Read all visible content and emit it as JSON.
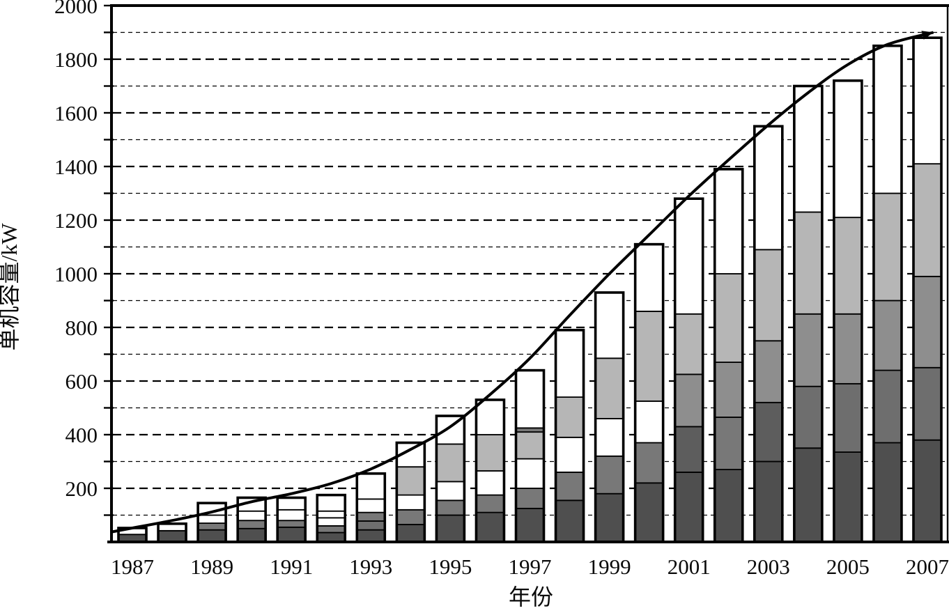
{
  "figure": {
    "ylabel": "单机容量/kW",
    "xlabel": "年份"
  },
  "chart_data": {
    "type": "bar",
    "subtype": "stacked-bars-with-smooth-trend-line-and-arrow",
    "title": "",
    "xlabel": "年份",
    "ylabel": "单机容量/kW",
    "ylim": [
      0,
      2000
    ],
    "ytick_label_step": 200,
    "ytick_minor_step": 100,
    "grid": "horizontal dashed every 100, heavier dash every 200, no gridline at 0 and 2000 border",
    "legend": "none",
    "ytick_labels": [
      "200",
      "400",
      "600",
      "800",
      "1000",
      "1200",
      "1400",
      "1600",
      "1800",
      "2000"
    ],
    "xtick_labels": [
      "1987",
      "1989",
      "1991",
      "1993",
      "1995",
      "1997",
      "1999",
      "2001",
      "2003",
      "2005",
      "2007"
    ],
    "categories": [
      1987,
      1988,
      1989,
      1990,
      1991,
      1992,
      1993,
      1994,
      1995,
      1996,
      1997,
      1998,
      1999,
      2000,
      2001,
      2002,
      2003,
      2004,
      2005,
      2006,
      2007
    ],
    "palette": {
      "d1": "#4f4f4f",
      "d2": "#5d5d5d",
      "d3": "#6e6e6e",
      "m": "#787878",
      "m2": "#8e8e8e",
      "l": "#b6b6b6",
      "w": "#ffffff",
      "outline": "#000000"
    },
    "bars": [
      {
        "year": 1987,
        "total": 52,
        "segments": [
          {
            "to": 28,
            "c": "d1"
          },
          {
            "to": 52,
            "c": "w"
          }
        ]
      },
      {
        "year": 1988,
        "total": 68,
        "segments": [
          {
            "to": 42,
            "c": "d1"
          },
          {
            "to": 68,
            "c": "w"
          }
        ]
      },
      {
        "year": 1989,
        "total": 145,
        "segments": [
          {
            "to": 45,
            "c": "d1"
          },
          {
            "to": 70,
            "c": "m"
          },
          {
            "to": 100,
            "c": "w"
          },
          {
            "to": 145,
            "c": "w"
          }
        ]
      },
      {
        "year": 1990,
        "total": 165,
        "segments": [
          {
            "to": 50,
            "c": "d1"
          },
          {
            "to": 80,
            "c": "m"
          },
          {
            "to": 115,
            "c": "w"
          },
          {
            "to": 165,
            "c": "w"
          }
        ]
      },
      {
        "year": 1991,
        "total": 165,
        "segments": [
          {
            "to": 55,
            "c": "d1"
          },
          {
            "to": 80,
            "c": "m"
          },
          {
            "to": 120,
            "c": "w"
          },
          {
            "to": 165,
            "c": "w"
          }
        ]
      },
      {
        "year": 1992,
        "total": 175,
        "segments": [
          {
            "to": 35,
            "c": "d1"
          },
          {
            "to": 60,
            "c": "m"
          },
          {
            "to": 90,
            "c": "w"
          },
          {
            "to": 115,
            "c": "w"
          },
          {
            "to": 175,
            "c": "w"
          }
        ]
      },
      {
        "year": 1993,
        "total": 255,
        "segments": [
          {
            "to": 45,
            "c": "d1"
          },
          {
            "to": 78,
            "c": "d3"
          },
          {
            "to": 110,
            "c": "m"
          },
          {
            "to": 160,
            "c": "w"
          },
          {
            "to": 255,
            "c": "w"
          }
        ]
      },
      {
        "year": 1994,
        "total": 370,
        "segments": [
          {
            "to": 65,
            "c": "d1"
          },
          {
            "to": 120,
            "c": "m"
          },
          {
            "to": 175,
            "c": "w"
          },
          {
            "to": 280,
            "c": "l"
          },
          {
            "to": 370,
            "c": "w"
          }
        ]
      },
      {
        "year": 1995,
        "total": 470,
        "segments": [
          {
            "to": 100,
            "c": "d1"
          },
          {
            "to": 155,
            "c": "m"
          },
          {
            "to": 225,
            "c": "w"
          },
          {
            "to": 365,
            "c": "l"
          },
          {
            "to": 470,
            "c": "w"
          }
        ]
      },
      {
        "year": 1996,
        "total": 530,
        "segments": [
          {
            "to": 110,
            "c": "d1"
          },
          {
            "to": 175,
            "c": "m"
          },
          {
            "to": 265,
            "c": "w"
          },
          {
            "to": 400,
            "c": "l"
          },
          {
            "to": 530,
            "c": "w"
          }
        ]
      },
      {
        "year": 1997,
        "total": 640,
        "segments": [
          {
            "to": 125,
            "c": "d1"
          },
          {
            "to": 200,
            "c": "m"
          },
          {
            "to": 310,
            "c": "w"
          },
          {
            "to": 410,
            "c": "l"
          },
          {
            "to": 425,
            "c": "m"
          },
          {
            "to": 640,
            "c": "w"
          }
        ]
      },
      {
        "year": 1998,
        "total": 790,
        "segments": [
          {
            "to": 155,
            "c": "d1"
          },
          {
            "to": 260,
            "c": "m"
          },
          {
            "to": 390,
            "c": "w"
          },
          {
            "to": 540,
            "c": "l"
          },
          {
            "to": 790,
            "c": "w"
          }
        ]
      },
      {
        "year": 1999,
        "total": 930,
        "segments": [
          {
            "to": 180,
            "c": "d1"
          },
          {
            "to": 320,
            "c": "m"
          },
          {
            "to": 460,
            "c": "w"
          },
          {
            "to": 685,
            "c": "l"
          },
          {
            "to": 930,
            "c": "w"
          }
        ]
      },
      {
        "year": 2000,
        "total": 1110,
        "segments": [
          {
            "to": 220,
            "c": "d1"
          },
          {
            "to": 370,
            "c": "m"
          },
          {
            "to": 525,
            "c": "w"
          },
          {
            "to": 860,
            "c": "l"
          },
          {
            "to": 1110,
            "c": "w"
          }
        ]
      },
      {
        "year": 2001,
        "total": 1280,
        "segments": [
          {
            "to": 260,
            "c": "d1"
          },
          {
            "to": 430,
            "c": "d2"
          },
          {
            "to": 625,
            "c": "m2"
          },
          {
            "to": 850,
            "c": "l"
          },
          {
            "to": 1280,
            "c": "w"
          }
        ]
      },
      {
        "year": 2002,
        "total": 1390,
        "segments": [
          {
            "to": 270,
            "c": "d1"
          },
          {
            "to": 465,
            "c": "m"
          },
          {
            "to": 670,
            "c": "m2"
          },
          {
            "to": 1000,
            "c": "l"
          },
          {
            "to": 1390,
            "c": "w"
          }
        ]
      },
      {
        "year": 2003,
        "total": 1550,
        "segments": [
          {
            "to": 300,
            "c": "d1"
          },
          {
            "to": 520,
            "c": "d2"
          },
          {
            "to": 750,
            "c": "m2"
          },
          {
            "to": 1090,
            "c": "l"
          },
          {
            "to": 1550,
            "c": "w"
          }
        ]
      },
      {
        "year": 2004,
        "total": 1700,
        "segments": [
          {
            "to": 350,
            "c": "d1"
          },
          {
            "to": 580,
            "c": "d3"
          },
          {
            "to": 850,
            "c": "m2"
          },
          {
            "to": 1230,
            "c": "l"
          },
          {
            "to": 1700,
            "c": "w"
          }
        ]
      },
      {
        "year": 2005,
        "total": 1720,
        "segments": [
          {
            "to": 335,
            "c": "d1"
          },
          {
            "to": 590,
            "c": "d3"
          },
          {
            "to": 850,
            "c": "m2"
          },
          {
            "to": 1210,
            "c": "l"
          },
          {
            "to": 1720,
            "c": "w"
          }
        ]
      },
      {
        "year": 2006,
        "total": 1850,
        "segments": [
          {
            "to": 370,
            "c": "d1"
          },
          {
            "to": 640,
            "c": "d3"
          },
          {
            "to": 900,
            "c": "m2"
          },
          {
            "to": 1300,
            "c": "l"
          },
          {
            "to": 1850,
            "c": "w"
          }
        ]
      },
      {
        "year": 2007,
        "total": 1880,
        "segments": [
          {
            "to": 380,
            "c": "d1"
          },
          {
            "to": 650,
            "c": "d3"
          },
          {
            "to": 990,
            "c": "m2"
          },
          {
            "to": 1410,
            "c": "l"
          },
          {
            "to": 1880,
            "c": "w"
          }
        ]
      }
    ],
    "trend_line": {
      "style": "smooth black curve with small arrowhead at upper-right end",
      "points": [
        {
          "year": 1986.5,
          "value": 38
        },
        {
          "year": 1987,
          "value": 52
        },
        {
          "year": 1988,
          "value": 80
        },
        {
          "year": 1989,
          "value": 112
        },
        {
          "year": 1990,
          "value": 150
        },
        {
          "year": 1991,
          "value": 180
        },
        {
          "year": 1992,
          "value": 218
        },
        {
          "year": 1993,
          "value": 272
        },
        {
          "year": 1994,
          "value": 345
        },
        {
          "year": 1995,
          "value": 430
        },
        {
          "year": 1996,
          "value": 550
        },
        {
          "year": 1997,
          "value": 685
        },
        {
          "year": 1998,
          "value": 845
        },
        {
          "year": 1999,
          "value": 1000
        },
        {
          "year": 2000,
          "value": 1145
        },
        {
          "year": 2001,
          "value": 1290
        },
        {
          "year": 2002,
          "value": 1425
        },
        {
          "year": 2003,
          "value": 1555
        },
        {
          "year": 2004,
          "value": 1675
        },
        {
          "year": 2005,
          "value": 1780
        },
        {
          "year": 2006,
          "value": 1855
        },
        {
          "year": 2007.15,
          "value": 1900
        }
      ],
      "arrow_end": true
    }
  }
}
